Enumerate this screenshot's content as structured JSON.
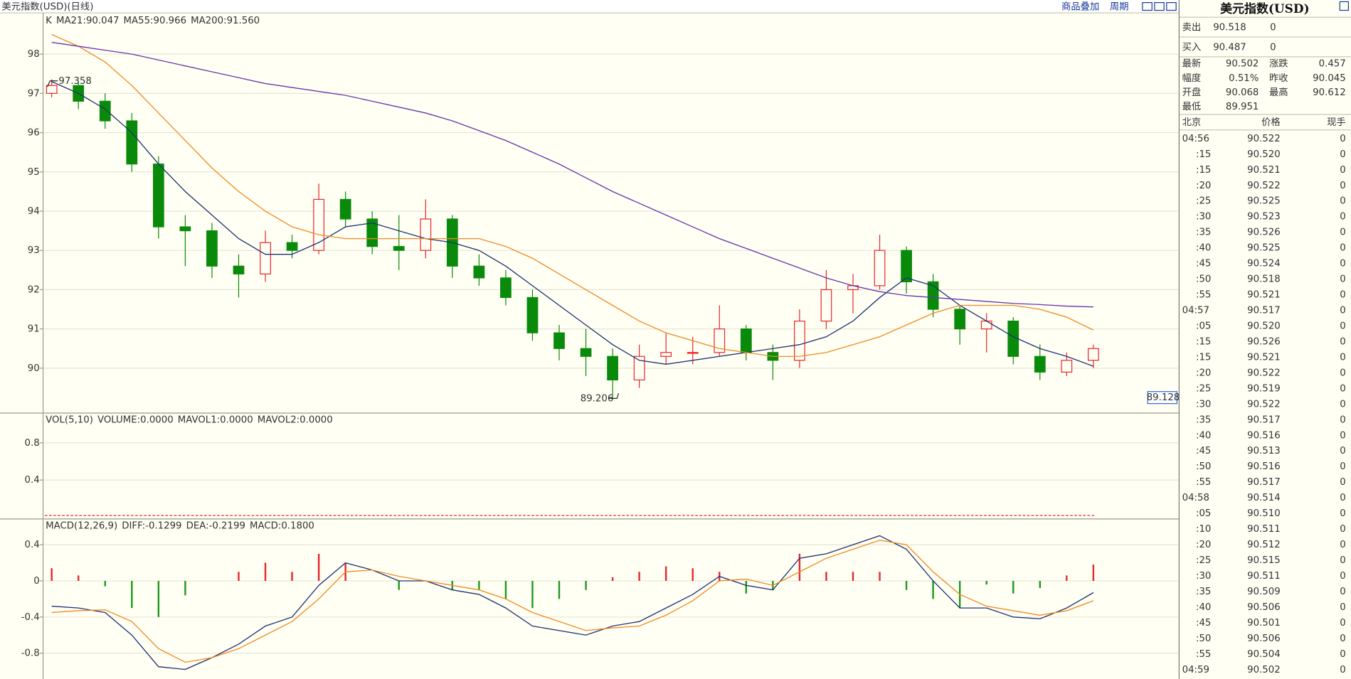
{
  "header": {
    "title": "美元指数(USD)(日线)",
    "overlay": "商品叠加",
    "period": "周期"
  },
  "chart_data": [
    {
      "type": "candlestick",
      "legend_label": "K",
      "up_color": "#e8262d",
      "down_color": "#0a8a0a",
      "grid": true,
      "ylim": [
        88.9,
        99.05
      ],
      "yticks": [
        90,
        91,
        92,
        93,
        94,
        95,
        96,
        97,
        98
      ],
      "annotations": [
        "97.358",
        "89.206",
        "89.128"
      ],
      "candles": [
        [
          97.0,
          97.358,
          96.9,
          97.2
        ],
        [
          97.2,
          97.3,
          96.6,
          96.8
        ],
        [
          96.8,
          97.0,
          96.1,
          96.3
        ],
        [
          96.3,
          96.5,
          95.0,
          95.2
        ],
        [
          95.2,
          95.4,
          93.3,
          93.6
        ],
        [
          93.6,
          93.9,
          92.6,
          93.5
        ],
        [
          93.5,
          93.7,
          92.3,
          92.6
        ],
        [
          92.6,
          92.9,
          91.8,
          92.4
        ],
        [
          92.4,
          93.5,
          92.2,
          93.2
        ],
        [
          93.2,
          93.4,
          92.8,
          93.0
        ],
        [
          93.0,
          94.7,
          92.9,
          94.3
        ],
        [
          94.3,
          94.5,
          93.6,
          93.8
        ],
        [
          93.8,
          94.0,
          92.9,
          93.1
        ],
        [
          93.1,
          93.9,
          92.5,
          93.0
        ],
        [
          93.0,
          94.3,
          92.8,
          93.8
        ],
        [
          93.8,
          93.9,
          92.3,
          92.6
        ],
        [
          92.6,
          92.9,
          92.1,
          92.3
        ],
        [
          92.3,
          92.5,
          91.6,
          91.8
        ],
        [
          91.8,
          92.0,
          90.7,
          90.9
        ],
        [
          90.9,
          91.1,
          90.2,
          90.5
        ],
        [
          90.5,
          91.0,
          89.8,
          90.3
        ],
        [
          90.3,
          90.5,
          89.206,
          89.7
        ],
        [
          89.7,
          90.6,
          89.5,
          90.3
        ],
        [
          90.3,
          90.9,
          90.1,
          90.4
        ],
        [
          90.4,
          90.8,
          90.1,
          90.4
        ],
        [
          90.4,
          91.6,
          90.3,
          91.0
        ],
        [
          91.0,
          91.1,
          90.2,
          90.4
        ],
        [
          90.4,
          90.6,
          89.7,
          90.2
        ],
        [
          90.2,
          91.5,
          90.0,
          91.2
        ],
        [
          91.2,
          92.5,
          91.0,
          92.0
        ],
        [
          92.0,
          92.4,
          91.4,
          92.1
        ],
        [
          92.1,
          93.4,
          92.0,
          93.0
        ],
        [
          93.0,
          93.1,
          91.9,
          92.2
        ],
        [
          92.2,
          92.4,
          91.3,
          91.5
        ],
        [
          91.5,
          91.6,
          90.6,
          91.0
        ],
        [
          91.0,
          91.4,
          90.4,
          91.2
        ],
        [
          91.2,
          91.3,
          90.1,
          90.3
        ],
        [
          90.3,
          90.6,
          89.7,
          89.9
        ],
        [
          89.9,
          90.4,
          89.8,
          90.2
        ],
        [
          90.2,
          90.6,
          90.0,
          90.5
        ]
      ],
      "series": [
        {
          "name": "MA21:90.047",
          "color": "#1f3270",
          "values": [
            97.3,
            97.0,
            96.6,
            96.0,
            95.2,
            94.5,
            93.9,
            93.3,
            92.9,
            92.9,
            93.2,
            93.6,
            93.7,
            93.5,
            93.3,
            93.2,
            93.0,
            92.6,
            92.1,
            91.6,
            91.1,
            90.6,
            90.2,
            90.1,
            90.2,
            90.3,
            90.4,
            90.5,
            90.6,
            90.8,
            91.2,
            91.8,
            92.3,
            92.1,
            91.6,
            91.2,
            90.8,
            90.5,
            90.3,
            90.05
          ]
        },
        {
          "name": "MA55:90.966",
          "color": "#f08a24",
          "values": [
            98.5,
            98.2,
            97.8,
            97.2,
            96.5,
            95.8,
            95.1,
            94.5,
            94.0,
            93.6,
            93.4,
            93.3,
            93.3,
            93.3,
            93.3,
            93.3,
            93.3,
            93.1,
            92.8,
            92.4,
            92.0,
            91.6,
            91.2,
            90.9,
            90.7,
            90.5,
            90.4,
            90.3,
            90.3,
            90.4,
            90.6,
            90.8,
            91.1,
            91.4,
            91.6,
            91.6,
            91.6,
            91.5,
            91.3,
            90.97
          ]
        },
        {
          "name": "MA200:91.560",
          "color": "#6a34a8",
          "values": [
            98.3,
            98.2,
            98.1,
            98.0,
            97.85,
            97.7,
            97.55,
            97.4,
            97.25,
            97.15,
            97.05,
            96.95,
            96.8,
            96.65,
            96.5,
            96.3,
            96.05,
            95.8,
            95.5,
            95.2,
            94.85,
            94.5,
            94.2,
            93.9,
            93.6,
            93.3,
            93.05,
            92.8,
            92.55,
            92.3,
            92.1,
            91.95,
            91.85,
            91.8,
            91.75,
            91.7,
            91.65,
            91.62,
            91.58,
            91.56
          ]
        }
      ]
    },
    {
      "type": "volume",
      "grid": true,
      "ylim": [
        0,
        1.12
      ],
      "yticks": [
        0.4,
        0.8
      ],
      "legend": [
        {
          "text": "VOL(5,10)",
          "color": "#555555"
        },
        {
          "text": "VOLUME:0.0000",
          "color": "#555555"
        },
        {
          "text": "MAVOL1:0.0000",
          "color": "#1f3270"
        },
        {
          "text": "MAVOL2:0.0000",
          "color": "#f08a24"
        }
      ]
    },
    {
      "type": "macd",
      "grid": true,
      "ylim": [
        -1.086,
        0.676
      ],
      "yticks": [
        -0.8,
        -0.4,
        0,
        0.4
      ],
      "legend_label": "MACD(12,26,9)",
      "series": [
        {
          "name": "DIFF:-0.1299",
          "color": "#1f3270",
          "values": [
            -0.28,
            -0.3,
            -0.35,
            -0.6,
            -0.95,
            -0.98,
            -0.85,
            -0.7,
            -0.5,
            -0.4,
            -0.05,
            0.2,
            0.12,
            0.0,
            0.0,
            -0.1,
            -0.15,
            -0.3,
            -0.5,
            -0.55,
            -0.6,
            -0.5,
            -0.45,
            -0.3,
            -0.15,
            0.05,
            -0.05,
            -0.1,
            0.25,
            0.3,
            0.4,
            0.5,
            0.35,
            0.0,
            -0.3,
            -0.3,
            -0.4,
            -0.42,
            -0.3,
            -0.13
          ]
        },
        {
          "name": "DEA:-0.2199",
          "color": "#f08a24",
          "values": [
            -0.35,
            -0.33,
            -0.32,
            -0.45,
            -0.75,
            -0.9,
            -0.85,
            -0.75,
            -0.6,
            -0.45,
            -0.2,
            0.1,
            0.12,
            0.05,
            0.0,
            -0.05,
            -0.1,
            -0.2,
            -0.35,
            -0.45,
            -0.55,
            -0.52,
            -0.5,
            -0.38,
            -0.22,
            0.0,
            0.02,
            -0.05,
            0.1,
            0.25,
            0.35,
            0.45,
            0.4,
            0.1,
            -0.15,
            -0.28,
            -0.33,
            -0.38,
            -0.33,
            -0.22
          ]
        }
      ],
      "histogram": {
        "name": "MACD:0.1800",
        "up_color": "#e8262d",
        "down_color": "#1e9a1e",
        "values": [
          0.14,
          0.06,
          -0.06,
          -0.3,
          -0.4,
          -0.16,
          0,
          0.1,
          0.2,
          0.1,
          0.3,
          0.2,
          0,
          -0.1,
          0,
          -0.1,
          -0.1,
          -0.2,
          -0.3,
          -0.2,
          -0.1,
          0.04,
          0.1,
          0.16,
          0.14,
          0.1,
          -0.14,
          -0.1,
          0.3,
          0.1,
          0.1,
          0.1,
          -0.1,
          -0.2,
          -0.3,
          -0.04,
          -0.14,
          -0.08,
          0.06,
          0.18
        ]
      }
    }
  ],
  "quote": {
    "title": "美元指数(USD)",
    "sell": {
      "label": "卖出",
      "price": "90.518",
      "volume": "0"
    },
    "buy": {
      "label": "买入",
      "price": "90.487",
      "volume": "0"
    },
    "stats": [
      {
        "label": "最新",
        "value": "90.502",
        "color": "#e8262d"
      },
      {
        "label": "涨跌",
        "value": "0.457",
        "color": "#e8262d"
      },
      {
        "label": "幅度",
        "value": "0.51%",
        "color": "#e8262d"
      },
      {
        "label": "昨收",
        "value": "90.045",
        "color": "#777777"
      },
      {
        "label": "开盘",
        "value": "90.068",
        "color": "#e8262d"
      },
      {
        "label": "最高",
        "value": "90.612",
        "color": "#e8262d"
      },
      {
        "label": "最低",
        "value": "89.951",
        "color": "#0a8a0a"
      }
    ],
    "columns": [
      "北京",
      "价格",
      "现手"
    ],
    "rows": [
      [
        "04:56",
        "90.522",
        "0"
      ],
      [
        ":15",
        "90.520",
        "0"
      ],
      [
        ":15",
        "90.521",
        "0"
      ],
      [
        ":20",
        "90.522",
        "0"
      ],
      [
        ":25",
        "90.525",
        "0"
      ],
      [
        ":30",
        "90.523",
        "0"
      ],
      [
        ":35",
        "90.526",
        "0"
      ],
      [
        ":40",
        "90.525",
        "0"
      ],
      [
        ":45",
        "90.524",
        "0"
      ],
      [
        ":50",
        "90.518",
        "0"
      ],
      [
        ":55",
        "90.521",
        "0"
      ],
      [
        "04:57",
        "90.517",
        "0"
      ],
      [
        ":05",
        "90.520",
        "0"
      ],
      [
        ":15",
        "90.526",
        "0"
      ],
      [
        ":15",
        "90.521",
        "0"
      ],
      [
        ":20",
        "90.522",
        "0"
      ],
      [
        ":25",
        "90.519",
        "0"
      ],
      [
        ":30",
        "90.522",
        "0"
      ],
      [
        ":35",
        "90.517",
        "0"
      ],
      [
        ":40",
        "90.516",
        "0"
      ],
      [
        ":45",
        "90.513",
        "0"
      ],
      [
        ":50",
        "90.516",
        "0"
      ],
      [
        ":55",
        "90.517",
        "0"
      ],
      [
        "04:58",
        "90.514",
        "0"
      ],
      [
        ":05",
        "90.510",
        "0"
      ],
      [
        ":10",
        "90.511",
        "0"
      ],
      [
        ":20",
        "90.512",
        "0"
      ],
      [
        ":25",
        "90.515",
        "0"
      ],
      [
        ":30",
        "90.511",
        "0"
      ],
      [
        ":35",
        "90.509",
        "0"
      ],
      [
        ":40",
        "90.506",
        "0"
      ],
      [
        ":45",
        "90.501",
        "0"
      ],
      [
        ":50",
        "90.506",
        "0"
      ],
      [
        ":55",
        "90.504",
        "0"
      ],
      [
        "04:59",
        "90.502",
        "0"
      ]
    ]
  }
}
